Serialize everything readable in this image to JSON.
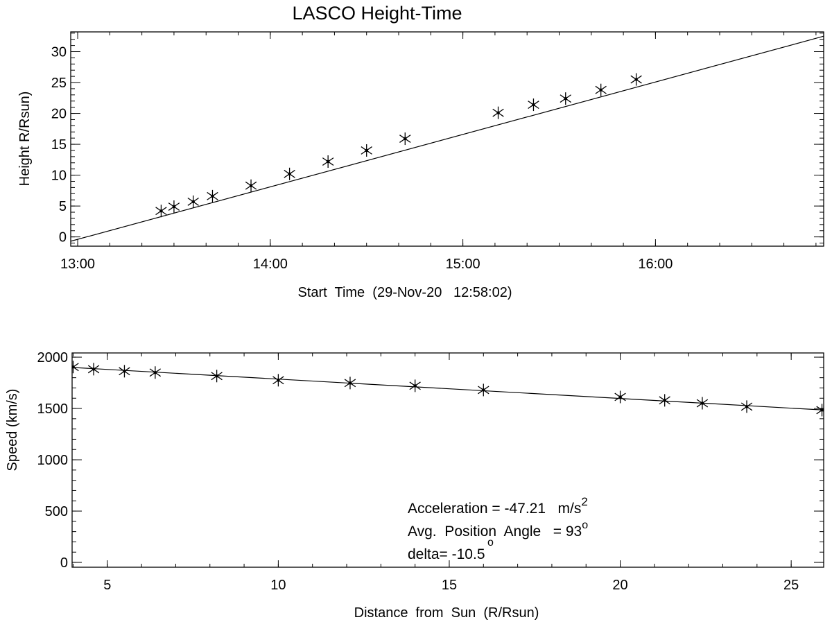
{
  "chart_data": [
    {
      "type": "scatter",
      "title": "LASCO Height-Time",
      "xlabel": "Start  Time  (29-Nov-20   12:58:02)",
      "ylabel": "Height R/Rsun)",
      "xlim": [
        "12:57:50",
        "16:52:24"
      ],
      "ylim": [
        -1.5,
        33.2
      ],
      "xticks": [
        "13:00",
        "14:00",
        "15:00",
        "16:00"
      ],
      "yticks": [
        0,
        5,
        10,
        15,
        20,
        25,
        30
      ],
      "grid": false,
      "marker": "asterisk",
      "points": {
        "x": [
          "13:26",
          "13:30",
          "13:36",
          "13:42",
          "13:54",
          "14:06",
          "14:18",
          "14:30",
          "14:42",
          "15:11",
          "15:22",
          "15:32",
          "15:43",
          "15:54"
        ],
        "y": [
          4.2,
          4.9,
          5.7,
          6.6,
          8.3,
          10.2,
          12.2,
          14.0,
          15.9,
          20.1,
          21.4,
          22.4,
          23.8,
          25.5
        ]
      },
      "fit_line": {
        "x": [
          "12:57:50",
          "16:52:24"
        ],
        "y": [
          -0.7,
          32.5
        ]
      }
    },
    {
      "type": "scatter",
      "xlabel": "Distance  from  Sun  (R/Rsun)",
      "ylabel": "Speed (km/s)",
      "xlim": [
        3.97,
        25.95
      ],
      "ylim": [
        -47,
        2041
      ],
      "xticks": [
        5,
        10,
        15,
        20,
        25
      ],
      "yticks": [
        0,
        500,
        1000,
        1500,
        2000
      ],
      "grid": false,
      "marker": "asterisk",
      "points": {
        "x": [
          4.0,
          4.6,
          5.5,
          6.4,
          8.2,
          10.0,
          12.1,
          14.0,
          16.0,
          20.0,
          21.3,
          22.4,
          23.7,
          25.9
        ],
        "y": [
          1904,
          1883,
          1863,
          1850,
          1816,
          1775,
          1748,
          1721,
          1680,
          1612,
          1579,
          1551,
          1518,
          1484
        ]
      },
      "fit_line": {
        "x": [
          3.97,
          25.95
        ],
        "y": [
          1900,
          1485
        ]
      },
      "annotations": {
        "acceleration": "Acceleration = -47.21   m/s",
        "acceleration_sup": "2",
        "position_angle": "Avg.  Position  Angle   = 93",
        "position_angle_sup": "o",
        "delta": "delta= -10.5",
        "delta_sup": "o"
      }
    }
  ]
}
